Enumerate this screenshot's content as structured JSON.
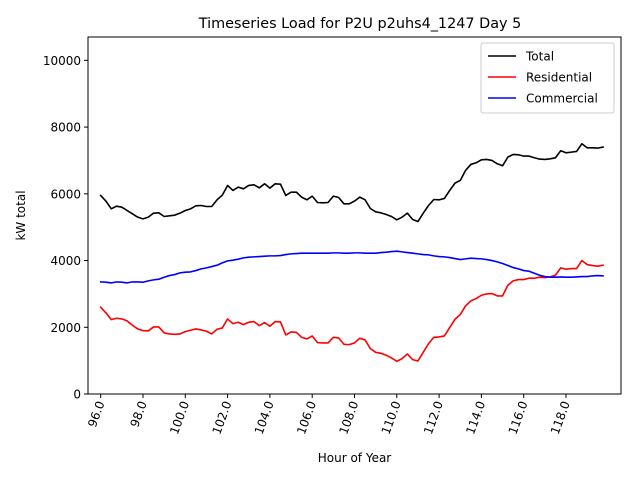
{
  "chart_data": {
    "type": "line",
    "title": "Timeseries Load for P2U p2uhs4_1247  Day 5",
    "xlabel": "Hour of Year",
    "ylabel": "kW total",
    "xlim": [
      95.4,
      120.6
    ],
    "ylim": [
      0,
      10700
    ],
    "xticks": [
      96,
      98,
      100,
      102,
      104,
      106,
      108,
      110,
      112,
      114,
      116,
      118
    ],
    "xtick_labels": [
      "96.0",
      "98.0",
      "100.0",
      "102.0",
      "104.0",
      "106.0",
      "108.0",
      "110.0",
      "112.0",
      "114.0",
      "116.0",
      "118.0"
    ],
    "yticks": [
      0,
      2000,
      4000,
      6000,
      8000,
      10000
    ],
    "ytick_labels": [
      "0",
      "2000",
      "4000",
      "6000",
      "8000",
      "10000"
    ],
    "grid": false,
    "legend_position": "top-right",
    "x": [
      96.0,
      96.25,
      96.5,
      96.75,
      97.0,
      97.25,
      97.5,
      97.75,
      98.0,
      98.25,
      98.5,
      98.75,
      99.0,
      99.25,
      99.5,
      99.75,
      100.0,
      100.25,
      100.5,
      100.75,
      101.0,
      101.25,
      101.5,
      101.75,
      102.0,
      102.25,
      102.5,
      102.75,
      103.0,
      103.25,
      103.5,
      103.75,
      104.0,
      104.25,
      104.5,
      104.75,
      105.0,
      105.25,
      105.5,
      105.75,
      106.0,
      106.25,
      106.5,
      106.75,
      107.0,
      107.25,
      107.5,
      107.75,
      108.0,
      108.25,
      108.5,
      108.75,
      109.0,
      109.25,
      109.5,
      109.75,
      110.0,
      110.25,
      110.5,
      110.75,
      111.0,
      111.25,
      111.5,
      111.75,
      112.0,
      112.25,
      112.5,
      112.75,
      113.0,
      113.25,
      113.5,
      113.75,
      114.0,
      114.25,
      114.5,
      114.75,
      115.0,
      115.25,
      115.5,
      115.75,
      116.0,
      116.25,
      116.5,
      116.75,
      117.0,
      117.25,
      117.5,
      117.75,
      118.0,
      118.25,
      118.5,
      118.75,
      119.0,
      119.25,
      119.5,
      119.75
    ],
    "series": [
      {
        "name": "Total",
        "color": "#000000",
        "values": [
          5950,
          5780,
          5550,
          5630,
          5600,
          5500,
          5400,
          5300,
          5250,
          5300,
          5420,
          5430,
          5320,
          5340,
          5360,
          5420,
          5500,
          5550,
          5640,
          5650,
          5620,
          5620,
          5820,
          5960,
          6250,
          6100,
          6200,
          6150,
          6250,
          6270,
          6180,
          6300,
          6170,
          6300,
          6290,
          5950,
          6050,
          6050,
          5900,
          5820,
          5930,
          5740,
          5730,
          5740,
          5930,
          5890,
          5700,
          5700,
          5780,
          5900,
          5820,
          5560,
          5460,
          5430,
          5380,
          5320,
          5220,
          5300,
          5420,
          5230,
          5170,
          5420,
          5650,
          5830,
          5820,
          5860,
          6100,
          6320,
          6400,
          6700,
          6880,
          6930,
          7020,
          7030,
          7000,
          6900,
          6840,
          7100,
          7180,
          7170,
          7130,
          7130,
          7080,
          7040,
          7030,
          7050,
          7080,
          7290,
          7230,
          7250,
          7270,
          7500,
          7380,
          7380,
          7370,
          7400
        ]
      },
      {
        "name": "Residential",
        "color": "#ff0000",
        "values": [
          2600,
          2430,
          2230,
          2270,
          2250,
          2190,
          2060,
          1950,
          1900,
          1890,
          2010,
          2010,
          1830,
          1800,
          1790,
          1800,
          1870,
          1910,
          1950,
          1920,
          1880,
          1800,
          1940,
          1980,
          2250,
          2110,
          2150,
          2080,
          2150,
          2170,
          2050,
          2140,
          2030,
          2170,
          2160,
          1770,
          1860,
          1850,
          1700,
          1650,
          1740,
          1540,
          1530,
          1530,
          1700,
          1680,
          1490,
          1480,
          1530,
          1670,
          1620,
          1360,
          1250,
          1220,
          1160,
          1080,
          980,
          1060,
          1200,
          1030,
          990,
          1250,
          1510,
          1700,
          1710,
          1740,
          1990,
          2240,
          2380,
          2640,
          2790,
          2860,
          2960,
          3000,
          3010,
          2940,
          2940,
          3260,
          3390,
          3430,
          3430,
          3470,
          3470,
          3500,
          3490,
          3510,
          3560,
          3780,
          3740,
          3760,
          3760,
          4000,
          3880,
          3850,
          3830,
          3860
        ]
      },
      {
        "name": "Commercial",
        "color": "#0000ff",
        "values": [
          3360,
          3350,
          3330,
          3360,
          3350,
          3330,
          3360,
          3360,
          3350,
          3390,
          3420,
          3440,
          3500,
          3550,
          3580,
          3630,
          3650,
          3660,
          3700,
          3750,
          3780,
          3820,
          3860,
          3930,
          3990,
          4010,
          4040,
          4080,
          4100,
          4110,
          4120,
          4130,
          4140,
          4140,
          4150,
          4180,
          4200,
          4210,
          4220,
          4220,
          4220,
          4220,
          4220,
          4220,
          4230,
          4230,
          4220,
          4220,
          4230,
          4230,
          4220,
          4220,
          4220,
          4240,
          4250,
          4270,
          4280,
          4260,
          4240,
          4220,
          4200,
          4180,
          4170,
          4140,
          4120,
          4110,
          4090,
          4060,
          4030,
          4050,
          4070,
          4060,
          4050,
          4030,
          4000,
          3960,
          3910,
          3850,
          3790,
          3750,
          3700,
          3680,
          3620,
          3560,
          3520,
          3500,
          3500,
          3510,
          3500,
          3500,
          3510,
          3520,
          3520,
          3540,
          3550,
          3540
        ]
      }
    ]
  }
}
